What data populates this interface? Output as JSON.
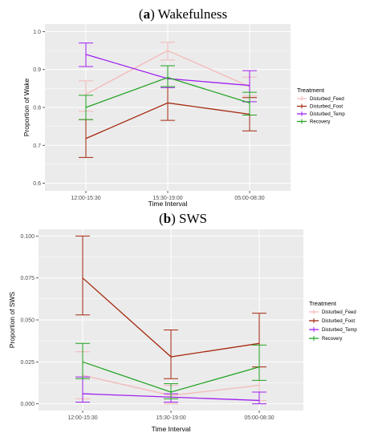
{
  "chart_data": [
    {
      "type": "line",
      "title_letter": "a",
      "title_rest": "Wakefulness",
      "xlabel": "Time Interval",
      "ylabel": "Proportion of Wake",
      "categories": [
        "12:00-15:30",
        "15:30-19:00",
        "05:00-08:30"
      ],
      "yticks": [
        "0.6",
        "0.7",
        "0.8",
        "0.9",
        "1.0"
      ],
      "ylim": [
        0.58,
        1.02
      ],
      "grid": true,
      "legend_position": "right",
      "legend_title": "Treatment",
      "series": [
        {
          "name": "Disturbed_Feed",
          "color": "#f4b8b8",
          "values": [
            0.835,
            0.95,
            0.855
          ],
          "lower": [
            0.79,
            0.925,
            0.83
          ],
          "upper": [
            0.87,
            0.972,
            0.88
          ]
        },
        {
          "name": "Disturbed_Foot",
          "color": "#a52a0f",
          "values": [
            0.718,
            0.812,
            0.782
          ],
          "lower": [
            0.668,
            0.766,
            0.738
          ],
          "upper": [
            0.768,
            0.855,
            0.826
          ]
        },
        {
          "name": "Disturbed_Temp",
          "color": "#a020f0",
          "values": [
            0.94,
            0.876,
            0.858
          ],
          "lower": [
            0.908,
            0.852,
            0.815
          ],
          "upper": [
            0.97,
            0.91,
            0.897
          ]
        },
        {
          "name": "Recovery",
          "color": "#23a323",
          "values": [
            0.8,
            0.879,
            0.812
          ],
          "lower": [
            0.768,
            0.855,
            0.78
          ],
          "upper": [
            0.832,
            0.91,
            0.84
          ]
        }
      ]
    },
    {
      "type": "line",
      "title_letter": "b",
      "title_rest": "SWS",
      "xlabel": "Time Interval",
      "ylabel": "Proportion of SWS",
      "categories": [
        "12:00-15:30",
        "15:30-19:00",
        "05:00-08:30"
      ],
      "yticks": [
        "0.000",
        "0.025",
        "0.050",
        "0.075",
        "0.100"
      ],
      "ylim": [
        -0.004,
        0.104
      ],
      "grid": true,
      "legend_position": "right",
      "legend_title": "Treatment",
      "series": [
        {
          "name": "Disturbed_Feed",
          "color": "#f4b8b8",
          "values": [
            0.017,
            0.005,
            0.011
          ],
          "lower": [
            0.003,
            0.0,
            0.002
          ],
          "upper": [
            0.031,
            0.011,
            0.022
          ]
        },
        {
          "name": "Disturbed_Foot",
          "color": "#a52a0f",
          "values": [
            0.075,
            0.028,
            0.036
          ],
          "lower": [
            0.053,
            0.015,
            0.022
          ],
          "upper": [
            0.1,
            0.044,
            0.054
          ]
        },
        {
          "name": "Disturbed_Temp",
          "color": "#a020f0",
          "values": [
            0.006,
            0.004,
            0.002
          ],
          "lower": [
            0.001,
            0.001,
            0.0
          ],
          "upper": [
            0.016,
            0.006,
            0.007
          ]
        },
        {
          "name": "Recovery",
          "color": "#23a323",
          "values": [
            0.025,
            0.007,
            0.022
          ],
          "lower": [
            0.015,
            0.003,
            0.014
          ],
          "upper": [
            0.036,
            0.012,
            0.035
          ]
        }
      ]
    }
  ]
}
